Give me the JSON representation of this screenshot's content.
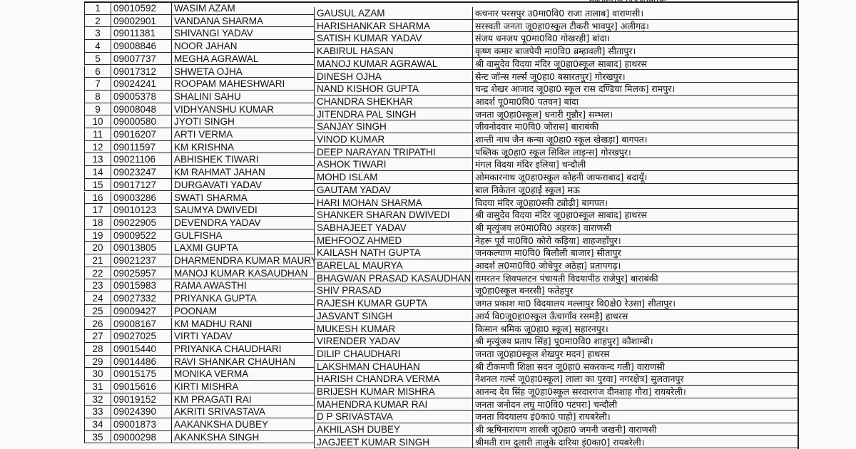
{
  "header": {
    "school_col": "allotedschoolname"
  },
  "rows": [
    {
      "sno": "1",
      "reg": "09010592",
      "name": "WASIM AZAM",
      "father": "GAUSUL AZAM",
      "school": "कचनार परसपुर उ0मा0वि0 राजा तालाब] वाराणसी।"
    },
    {
      "sno": "2",
      "reg": "09002901",
      "name": "VANDANA SHARMA",
      "father": "HARISHANKAR SHARMA",
      "school": "सरस्वती जनता जू0हा0स्कूल टीकरी भावपुर] अलीगढ़।"
    },
    {
      "sno": "3",
      "reg": "09011381",
      "name": "SHIVANGI YADAV",
      "father": "SATISH KUMAR YADAV",
      "school": "संजय धनजय पू0मा0वि0 गोखरही] बांदा।"
    },
    {
      "sno": "4",
      "reg": "09008846",
      "name": "NOOR JAHAN",
      "father": "KABIRUL HASAN",
      "school": "कृष्ण कमार बाजपेयी मा0वि0 ब्रम्हावली] सीतापुर।"
    },
    {
      "sno": "5",
      "reg": "09007737",
      "name": "MEGHA AGRAWAL",
      "father": "MANOJ KUMAR AGRAWAL",
      "school": "श्री वासुदेव विदया मंदिर जू0हा0स्कूल साबाद] हाथरस"
    },
    {
      "sno": "6",
      "reg": "09017312",
      "name": "SHWETA OJHA",
      "father": "DINESH OJHA",
      "school": "सेन्ट जॉन्स गर्ल्स जू0हा0 बसारतपुर] गोरखपुर।"
    },
    {
      "sno": "7",
      "reg": "09024241",
      "name": "ROOPAM MAHESHWARI",
      "father": "NAND KISHOR GUPTA",
      "school": "चन्द्र शेखर आजाद जू0हा0 स्कूल रास दण्डिया मिलक] रामपुर।"
    },
    {
      "sno": "8",
      "reg": "09005378",
      "name": "SHALINI SAHU",
      "father": "CHANDRA SHEKHAR",
      "school": "आदर्श पू0मा0वि0 पतवन] बांदा"
    },
    {
      "sno": "9",
      "reg": "09008048",
      "name": "VIDHYANSHU KUMAR",
      "father": "JITENDRA PAL SINGH",
      "school": "जनता जू0हा0स्कूल] धनारी गुन्नौर] सम्भल।"
    },
    {
      "sno": "10",
      "reg": "09000580",
      "name": "JYOTI SINGH",
      "father": "SANJAY SINGH",
      "school": "जीवनोदवार मा0वि0 जौरास] बाराबंकी"
    },
    {
      "sno": "11",
      "reg": "09016207",
      "name": "ARTI VERMA",
      "father": "VINOD KUMAR",
      "school": "शान्ती नाथ जैन कन्या जू0हा0 स्कूल खेखड़ा] बागपत।"
    },
    {
      "sno": "12",
      "reg": "09011597",
      "name": "KM KRISHNA",
      "father": "DEEP NARAYAN TRIPATHI",
      "school": "पब्लिक जू0हा0 स्कूल सिविल लाइन्स] गोरखपुर।"
    },
    {
      "sno": "13",
      "reg": "09021106",
      "name": "ABHISHEK TIWARI",
      "father": "ASHOK TIWARI",
      "school": "मंगल विदया मंदिर इलिया] चन्दौली"
    },
    {
      "sno": "14",
      "reg": "09023247",
      "name": "KM RAHMAT JAHAN",
      "father": "MOHD ISLAM",
      "school": "ओमकारनाथ जू0हा0स्कूल कोहनी जाफराबाद] बदायूँ।"
    },
    {
      "sno": "15",
      "reg": "09017127",
      "name": "DURGAVATI YADAV",
      "father": "GAUTAM YADAV",
      "school": "बाल निकेतन जू0हाई स्कूल] मऊ"
    },
    {
      "sno": "16",
      "reg": "09003286",
      "name": "SWATI SHARMA",
      "father": "HARI MOHAN SHARMA",
      "school": "विदया मंदिर जू0हा0स्की ट्योढ़ी] बागपत।"
    },
    {
      "sno": "17",
      "reg": "09010123",
      "name": "SAUMYA DWIVEDI",
      "father": "SHANKER SHARAN DWIVEDI",
      "school": "श्री वासुदेव विदया मंदिर जू0हा0स्कूल साबाद] हाथरस"
    },
    {
      "sno": "18",
      "reg": "09022905",
      "name": "DEVENDRA YADAV",
      "father": "SABHAJEET YADAV",
      "school": "श्री मृत्युंजय ल0मा0वि0 अहरक] वाराणसी"
    },
    {
      "sno": "19",
      "reg": "09009522",
      "name": "GULFISHA",
      "father": "MEHFOOZ AHMED",
      "school": "नेहरू पूर्व मा0वि0 कोरो कड़िया] शाहजहाँपुर।"
    },
    {
      "sno": "20",
      "reg": "09013805",
      "name": "LAXMI GUPTA",
      "father": "KAILASH NATH GUPTA",
      "school": "जनकल्याण मा0वि0 बिलौली बाजार] सीतापुर"
    },
    {
      "sno": "21",
      "reg": "09021237",
      "name": "DHARMENDRA KUMAR MAURYA",
      "father": "BARELAL MAURYA",
      "school": "आदर्श ल0मा0वि0 जोधेपुर अठेहा] प्रतापगढ़।"
    },
    {
      "sno": "22",
      "reg": "09025957",
      "name": "MANOJ KUMAR KASAUDHAN",
      "father": "BHAGWAN PRASAD KASAUDHAN",
      "school": "रामरतन शिवपलटन पंचायती विदयापीठ राजेपुर] बाराबंकी"
    },
    {
      "sno": "23",
      "reg": "09015983",
      "name": "RAMA AWASTHI",
      "father": "SHIV PRASAD",
      "school": "जू0हा0स्कूल बनरसी] फतेहपुर"
    },
    {
      "sno": "24",
      "reg": "09027332",
      "name": "PRIYANKA GUPTA",
      "father": "RAJESH KUMAR GUPTA",
      "school": "जगत प्रकाश मा0 विदयालय मल्लापुर वि0क्षे0 रेउसा] सीतापुर।"
    },
    {
      "sno": "25",
      "reg": "09009427",
      "name": "POONAM",
      "father": "JASVANT SINGH",
      "school": "आर्य वि0जू0हा0स्कूल ऊँचागाँव रसमड़ै] हाथरस"
    },
    {
      "sno": "26",
      "reg": "09008167",
      "name": "KM MADHU RANI",
      "father": "MUKESH KUMAR",
      "school": "किसान श्रमिक जू0हा0 स्कूल] सहारनपुर।"
    },
    {
      "sno": "27",
      "reg": "09027025",
      "name": "VIRTI YADAV",
      "father": "VIRENDER YADAV",
      "school": "श्री मृत्युंजय प्रताप सिंह] पू0मा0वि0 शाहपुर] कौशाम्बी।"
    },
    {
      "sno": "28",
      "reg": "09015440",
      "name": "PRIYANKA CHAUDHARI",
      "father": "DILIP CHAUDHARI",
      "school": "जनता जू0हा0स्कूल शेखपुर मदन] हाथरस"
    },
    {
      "sno": "29",
      "reg": "09014486",
      "name": "RAVI SHANKAR CHAUHAN",
      "father": "LAKSHMAN CHAUHAN",
      "school": "श्री टीकमणी शिक्षा सदन जू0हा0 सकरकन्द गली] वाराणसी"
    },
    {
      "sno": "30",
      "reg": "09015175",
      "name": "MONIKA VERMA",
      "father": "HARISH CHANDRA VERMA",
      "school": "नेशनल गर्ल्स जू0हा0स्कूल] लाला का पुरवा] नगरक्षेत्र] सुलतानपुर"
    },
    {
      "sno": "31",
      "reg": "09015616",
      "name": "KIRTI MISHRA",
      "father": "BRIJESH KUMAR MISHRA",
      "school": "आनन्द देव सिंह जू0हा0स्कूल सरदारगंज दीनशाह गौरा] रायबरेली।"
    },
    {
      "sno": "32",
      "reg": "09019152",
      "name": "KM PRAGATI RAI",
      "father": "MAHENDRA KUMAR RAI",
      "school": "जनता जनोदन लघु मा0वि0 पटपरा] चन्दौली"
    },
    {
      "sno": "33",
      "reg": "09024390",
      "name": "AKRITI SRIVASTAVA",
      "father": "D P SRIVASTAVA",
      "school": "जनता विदयालय इं0का0 पाहो] रायबरेली।"
    },
    {
      "sno": "34",
      "reg": "09001873",
      "name": "AAKANKSHA DUBEY",
      "father": "AKHILASH DUBEY",
      "school": "श्री ऋषिनारायण शास्त्री जू0हा0 जमनी जखनी] वाराणसी"
    },
    {
      "sno": "35",
      "reg": "09000298",
      "name": "AKANKSHA SINGH",
      "father": "JAGJEET KUMAR SINGH",
      "school": "श्रीमती राम दुलारी तालुके दारिया इं0का0] रायबरेली।"
    }
  ]
}
